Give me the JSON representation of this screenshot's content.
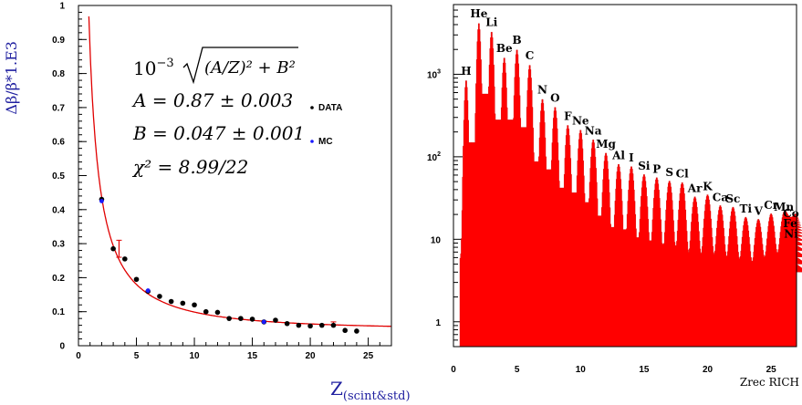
{
  "colors": {
    "fit": "#e00000",
    "data": "#000000",
    "mc": "#1a1aff",
    "ylabel": "#2020a0",
    "hist": "#ff0000"
  },
  "chart_data": [
    {
      "type": "scatter",
      "ylabel": "Δβ/β*1.E3",
      "xlabel": "Z",
      "xlabel_sub": "(scint&std)",
      "xlim": [
        0,
        27
      ],
      "ylim": [
        0,
        1
      ],
      "xticks": [
        "0",
        "5",
        "10",
        "15",
        "20",
        "25"
      ],
      "xtick_values": [
        0,
        5,
        10,
        15,
        20,
        25
      ],
      "yticks": [
        "0",
        "0.1",
        "0.2",
        "0.3",
        "0.4",
        "0.5",
        "0.6",
        "0.7",
        "0.8",
        "0.9",
        "1"
      ],
      "ytick_values": [
        0,
        0.1,
        0.2,
        0.3,
        0.4,
        0.5,
        0.6,
        0.7,
        0.8,
        0.9,
        1
      ],
      "fit": {
        "A": 0.87,
        "B": 0.047
      },
      "annotation": {
        "formula_factor": "10",
        "formula_exp": "−3",
        "formula_sqrt": "(A/Z)² + B²",
        "A_line": "A = 0.87 ± 0.003",
        "B_line": "B = 0.047 ± 0.001",
        "chi_line": "χ² = 8.99/22"
      },
      "legend": [
        {
          "name": "DATA",
          "color": "#000000"
        },
        {
          "name": "MC",
          "color": "#1a1aff"
        }
      ],
      "series": [
        {
          "name": "DATA",
          "x": [
            2,
            3,
            4,
            5,
            6,
            7,
            8,
            9,
            10,
            11,
            12,
            13,
            14,
            15,
            16,
            17,
            18,
            19,
            20,
            21,
            22,
            23,
            24
          ],
          "y": [
            0.43,
            0.285,
            0.255,
            0.195,
            0.16,
            0.145,
            0.13,
            0.125,
            0.12,
            0.1,
            0.098,
            0.08,
            0.08,
            0.078,
            0.07,
            0.075,
            0.065,
            0.06,
            0.058,
            0.06,
            0.06,
            0.045,
            0.043
          ]
        },
        {
          "name": "MC",
          "x": [
            2,
            6,
            16
          ],
          "y": [
            0.425,
            0.162,
            0.07
          ]
        }
      ],
      "error_bars": [
        {
          "x": 3.5,
          "y": 0.285,
          "low": 0.26,
          "high": 0.31
        },
        {
          "x": 22,
          "y": 0.065,
          "low": 0.06,
          "high": 0.07
        }
      ]
    },
    {
      "type": "bar",
      "xlabel": "Zrec RICH",
      "yscale": "log",
      "xlim": [
        0,
        27
      ],
      "ylim": [
        0.5,
        7000
      ],
      "xticks": [
        "0",
        "5",
        "10",
        "15",
        "20",
        "25"
      ],
      "xtick_values": [
        0,
        5,
        10,
        15,
        20,
        25
      ],
      "yticks": [
        {
          "base": "1",
          "exp": "",
          "value": 1
        },
        {
          "base": "10",
          "exp": "",
          "value": 10
        },
        {
          "base": "10",
          "exp": "2",
          "value": 100
        },
        {
          "base": "10",
          "exp": "3",
          "value": 1000
        }
      ],
      "peaks": [
        {
          "label": "H",
          "z": 1,
          "count": 850
        },
        {
          "label": "He",
          "z": 2,
          "count": 4200
        },
        {
          "label": "Li",
          "z": 3,
          "count": 3300
        },
        {
          "label": "Be",
          "z": 4,
          "count": 1600
        },
        {
          "label": "B",
          "z": 5,
          "count": 2000
        },
        {
          "label": "C",
          "z": 6,
          "count": 1300
        },
        {
          "label": "N",
          "z": 7,
          "count": 500
        },
        {
          "label": "O",
          "z": 8,
          "count": 400
        },
        {
          "label": "F",
          "z": 9,
          "count": 240
        },
        {
          "label": "Ne",
          "z": 10,
          "count": 210
        },
        {
          "label": "Na",
          "z": 11,
          "count": 160
        },
        {
          "label": "Mg",
          "z": 12,
          "count": 110
        },
        {
          "label": "Al",
          "z": 13,
          "count": 80
        },
        {
          "label": "I",
          "z": 14,
          "count": 75
        },
        {
          "label": "Si",
          "z": 15,
          "count": 60
        },
        {
          "label": "P",
          "z": 16,
          "count": 55
        },
        {
          "label": "S",
          "z": 17,
          "count": 50
        },
        {
          "label": "Cl",
          "z": 18,
          "count": 48
        },
        {
          "label": "Ar",
          "z": 19,
          "count": 32
        },
        {
          "label": "K",
          "z": 20,
          "count": 34
        },
        {
          "label": "Ca",
          "z": 21,
          "count": 25
        },
        {
          "label": "Sc",
          "z": 22,
          "count": 24
        },
        {
          "label": "Ti",
          "z": 23,
          "count": 18
        },
        {
          "label": "V",
          "z": 24,
          "count": 17
        },
        {
          "label": "Cr",
          "z": 25,
          "count": 20
        },
        {
          "label": "Mn",
          "z": 26,
          "count": 19
        },
        {
          "label": "Fe",
          "z": 26.5,
          "count": 12
        },
        {
          "label": "Co",
          "z": 27,
          "count": 16
        },
        {
          "label": "Ni",
          "z": 27.5,
          "count": 9
        }
      ]
    }
  ]
}
